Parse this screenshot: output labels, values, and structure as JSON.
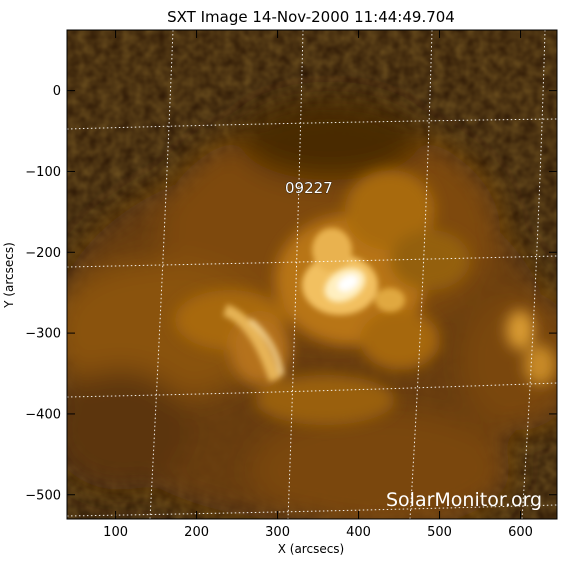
{
  "title": "SXT Image 14-Nov-2000 11:44:49.704",
  "x_axis": {
    "label": "X (arcsecs)",
    "range": [
      40,
      645
    ],
    "ticks": [
      100,
      200,
      300,
      400,
      500,
      600
    ]
  },
  "y_axis": {
    "label": "Y (arcsecs)",
    "range": [
      -530,
      75
    ],
    "ticks": [
      0,
      -100,
      -200,
      -300,
      -400,
      -500
    ]
  },
  "region": {
    "label": "09227",
    "x": 310,
    "y": -125
  },
  "watermark": "SolarMonitor.org",
  "colors": {
    "background": "#2a1503",
    "emission": "#c8800e",
    "highlight": "#fff8e0",
    "grid": "#ffffff"
  }
}
